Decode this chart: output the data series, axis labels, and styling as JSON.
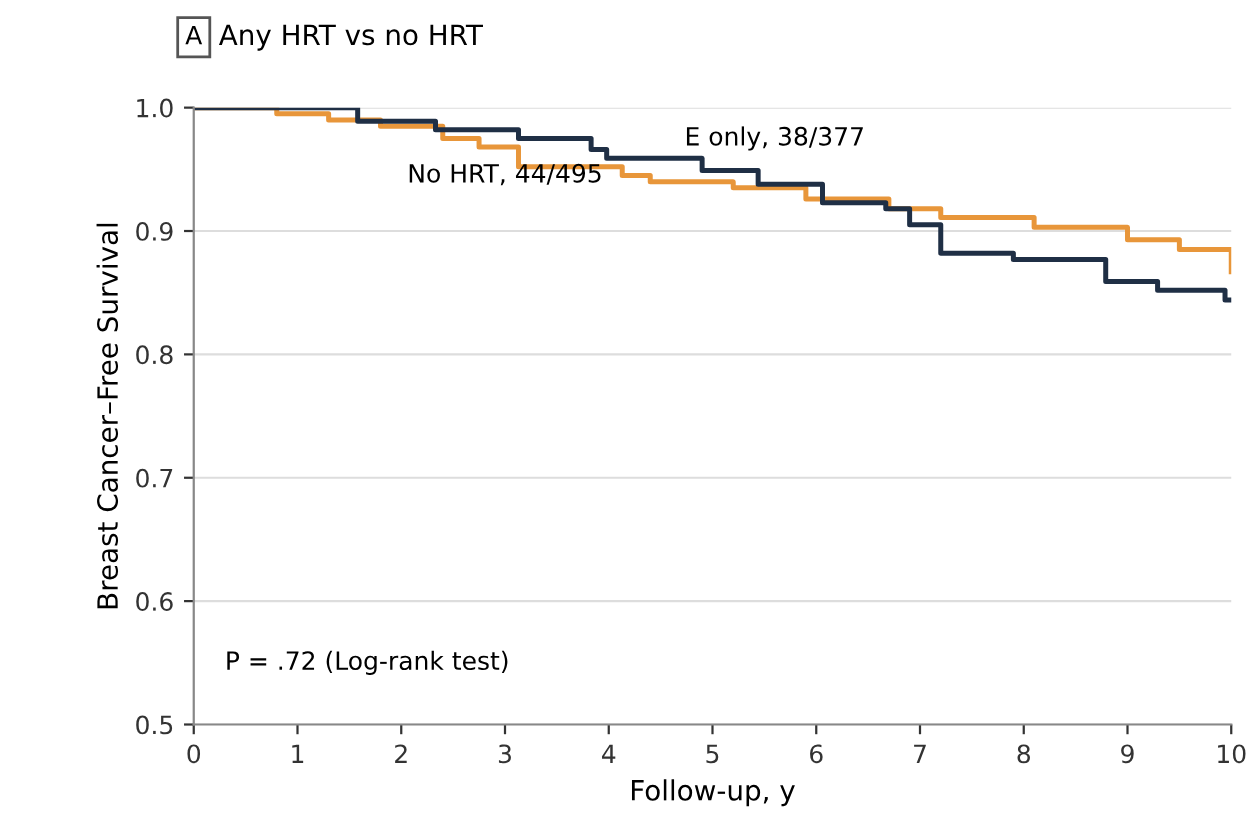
{
  "chart_data": {
    "type": "step",
    "title": "Any HRT vs no HRT",
    "xlabel": "Follow-up, y",
    "ylabel": "Breast Cancer–Free Survival",
    "xlim": [
      0,
      10
    ],
    "xticks": [
      0,
      1,
      2,
      3,
      4,
      5,
      6,
      7,
      8,
      9,
      10
    ],
    "ylim": [
      0.5,
      1.0
    ],
    "yticks": [
      {
        "value": 0.5,
        "label": "0.5"
      },
      {
        "value": 0.6,
        "label": "0.6"
      },
      {
        "value": 0.7,
        "label": "0.7"
      },
      {
        "value": 0.8,
        "label": "0.8"
      },
      {
        "value": 0.9,
        "label": "0.9"
      },
      {
        "value": 1.0,
        "label": "1.0"
      }
    ],
    "grid": "y",
    "legend": false,
    "series": [
      {
        "name": "No HRT, 44/495",
        "color": "#e8963a",
        "x": [
          0,
          0.8,
          1.3,
          1.8,
          2.4,
          2.75,
          3.13,
          4.13,
          4.4,
          5.2,
          5.9,
          6.7,
          7.2,
          8.1,
          9.0,
          9.5,
          10.0
        ],
        "values": [
          1.0,
          0.995,
          0.99,
          0.985,
          0.975,
          0.968,
          0.952,
          0.945,
          0.94,
          0.935,
          0.926,
          0.918,
          0.911,
          0.903,
          0.893,
          0.885,
          0.867
        ]
      },
      {
        "name": "E only, 38/377",
        "color": "#1f2f45",
        "x": [
          0,
          1.58,
          2.33,
          3.13,
          3.83,
          3.98,
          4.9,
          5.44,
          6.06,
          6.67,
          6.9,
          7.2,
          7.9,
          8.79,
          9.29,
          9.94,
          10.0
        ],
        "values": [
          1.0,
          0.989,
          0.982,
          0.975,
          0.966,
          0.959,
          0.949,
          0.938,
          0.923,
          0.918,
          0.905,
          0.882,
          0.877,
          0.859,
          0.852,
          0.844,
          0.844
        ]
      }
    ],
    "annotations": [
      "A",
      "P = .72 (Log-rank test)"
    ]
  }
}
